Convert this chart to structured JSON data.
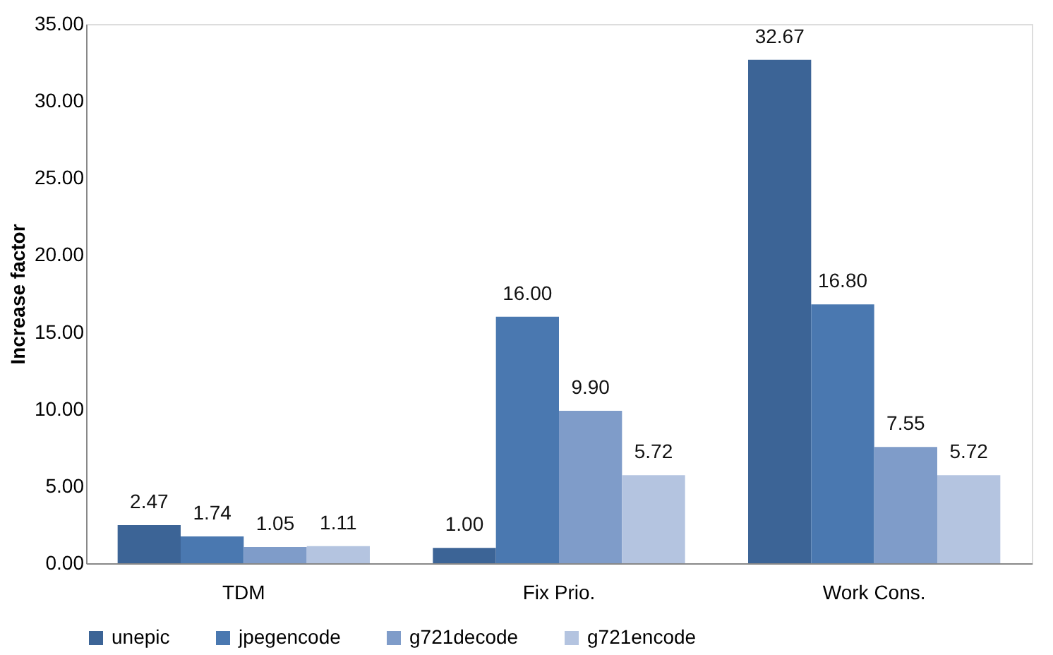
{
  "chart_data": {
    "type": "bar",
    "ylabel": "Increase factor",
    "categories": [
      "TDM",
      "Fix Prio.",
      "Work Cons."
    ],
    "series": [
      {
        "name": "unepic",
        "color": "#3c6496",
        "values": [
          2.47,
          1.0,
          32.67
        ],
        "value_labels": [
          "2.47",
          "1.00",
          "32.67"
        ]
      },
      {
        "name": "jpegencode",
        "color": "#4a78b0",
        "values": [
          1.74,
          16.0,
          16.8
        ],
        "value_labels": [
          "1.74",
          "16.00",
          "16.80"
        ]
      },
      {
        "name": "g721decode",
        "color": "#7f9cc9",
        "values": [
          1.05,
          9.9,
          7.55
        ],
        "value_labels": [
          "1.05",
          "9.90",
          "7.55"
        ]
      },
      {
        "name": "g721encode",
        "color": "#b4c4e0",
        "values": [
          1.11,
          5.72,
          5.72
        ],
        "value_labels": [
          "1.11",
          "5.72",
          "5.72"
        ]
      }
    ],
    "ylim": [
      0,
      35
    ],
    "yticks": [
      {
        "value": 0,
        "label": "0.00"
      },
      {
        "value": 5,
        "label": "5.00"
      },
      {
        "value": 10,
        "label": "10.00"
      },
      {
        "value": 15,
        "label": "15.00"
      },
      {
        "value": 20,
        "label": "20.00"
      },
      {
        "value": 25,
        "label": "25.00"
      },
      {
        "value": 30,
        "label": "30.00"
      },
      {
        "value": 35,
        "label": "35.00"
      }
    ],
    "grid": false,
    "legend": "bottom"
  }
}
